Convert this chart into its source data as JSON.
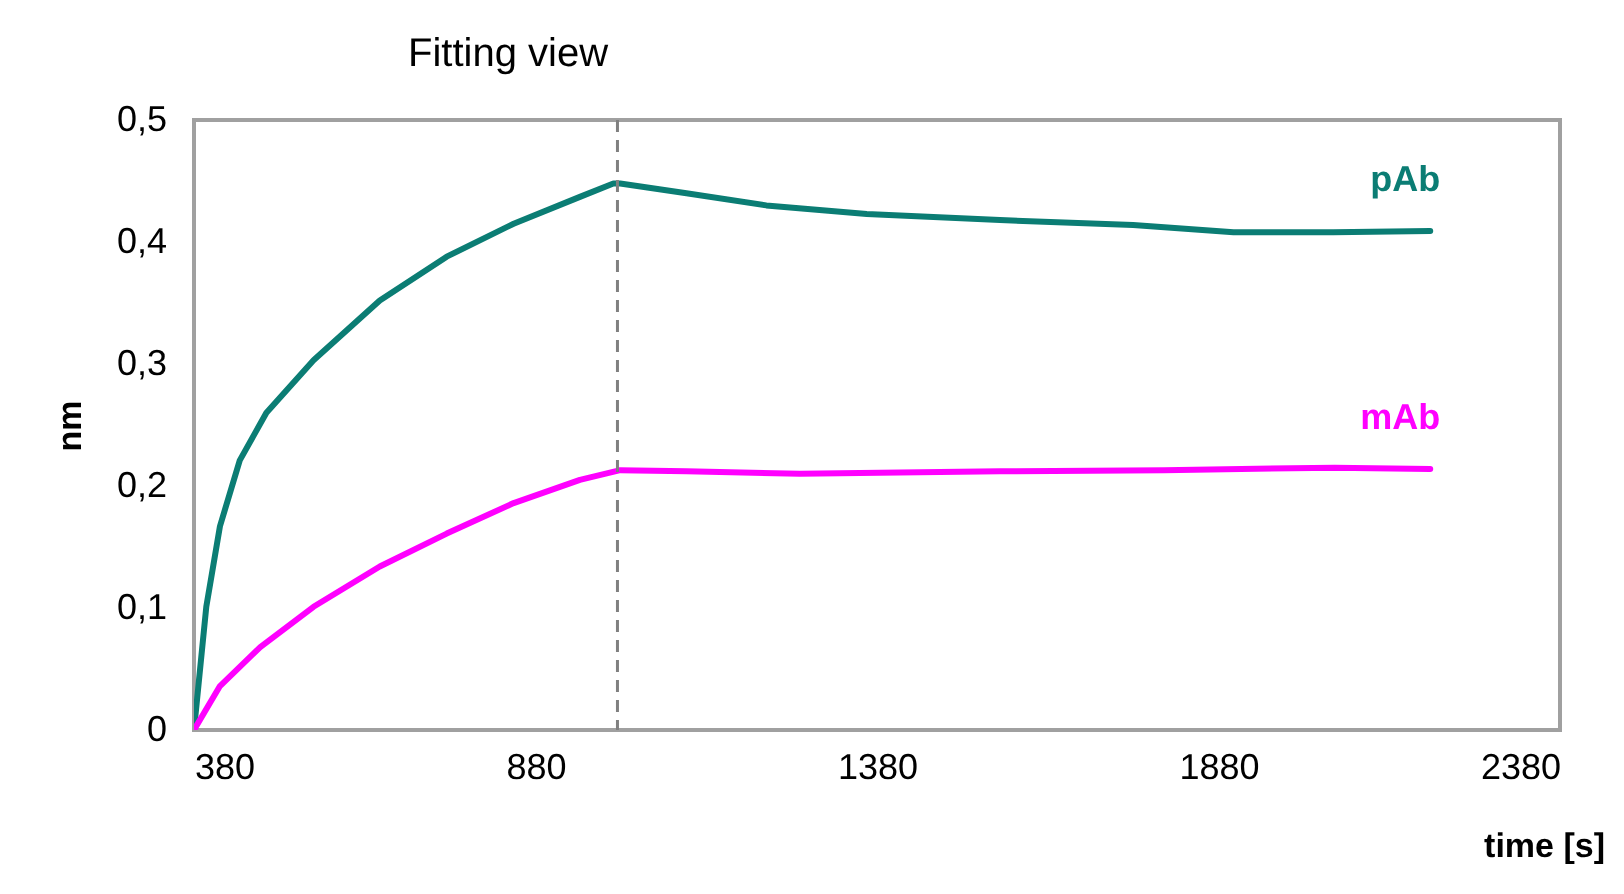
{
  "chart_data": {
    "type": "line",
    "title": "Fitting view",
    "xlabel": "time [s]",
    "ylabel": "nm",
    "xlim": [
      380,
      2380
    ],
    "xticks": [
      380,
      880,
      1380,
      1880,
      2380
    ],
    "ylim": [
      0,
      0.5
    ],
    "yticks": [
      0,
      {
        "value": 0.1,
        "label": "0,1"
      },
      {
        "value": 0.2,
        "label": "0,2"
      },
      {
        "value": 0.3,
        "label": "0,3"
      },
      {
        "value": 0.4,
        "label": "0,4"
      },
      {
        "value": 0.5,
        "label": "0,5"
      }
    ],
    "grid": false,
    "legend": false,
    "marker": "none",
    "line_style": "solid",
    "ref_lines": [
      {
        "axis": "x",
        "value": 1000,
        "color": "#808080",
        "line_style": "dashed"
      }
    ],
    "series": [
      {
        "name": "pAb",
        "color": "#0b7d74",
        "x": [
          380,
          398,
          418,
          447,
          486,
          555,
          652,
          750,
          848,
          945,
          994,
          1004,
          1101,
          1218,
          1365,
          1560,
          1755,
          1902,
          2048,
          2190
        ],
        "values": [
          0,
          0.101,
          0.167,
          0.221,
          0.26,
          0.303,
          0.352,
          0.388,
          0.415,
          0.437,
          0.448,
          0.448,
          0.44,
          0.43,
          0.423,
          0.418,
          0.414,
          0.408,
          0.408,
          0.409
        ]
      },
      {
        "name": "mAb",
        "color": "#ff00ff",
        "x": [
          380,
          418,
          477,
          555,
          652,
          750,
          848,
          945,
          1004,
          1101,
          1267,
          1560,
          1800,
          2050,
          2190
        ],
        "values": [
          0,
          0.036,
          0.068,
          0.101,
          0.134,
          0.161,
          0.186,
          0.205,
          0.213,
          0.212,
          0.21,
          0.212,
          0.213,
          0.215,
          0.214
        ]
      }
    ]
  }
}
